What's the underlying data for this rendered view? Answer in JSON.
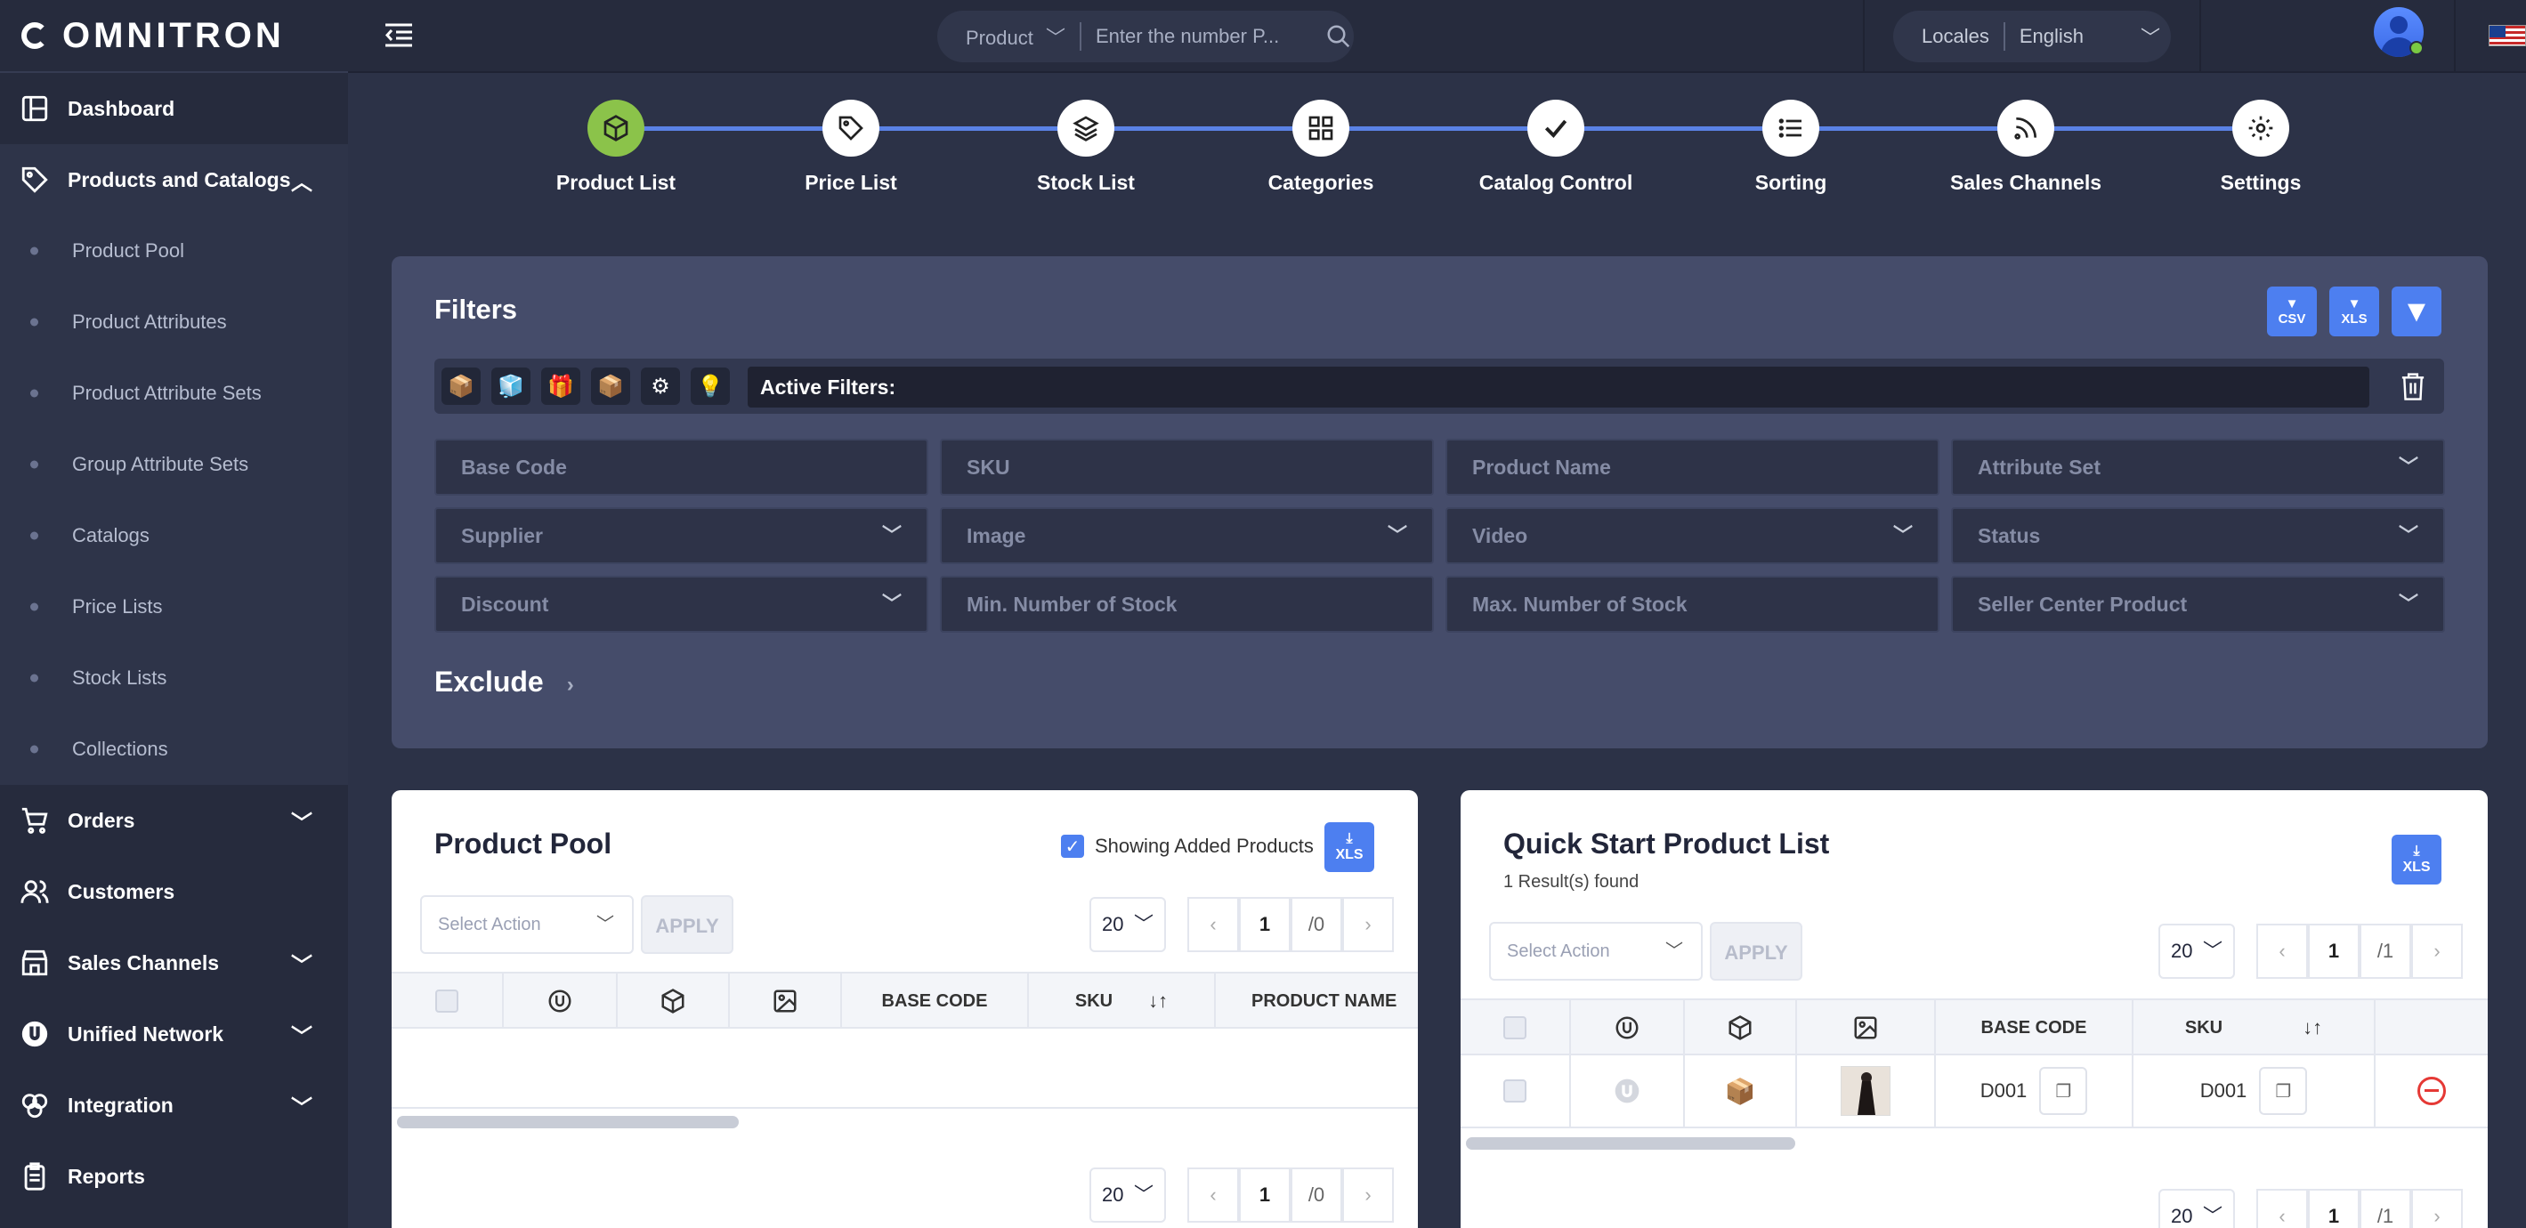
{
  "app": {
    "logo": "OMNITRON"
  },
  "sidebar": {
    "items": [
      {
        "label": "Dashboard"
      },
      {
        "label": "Products and Catalogs"
      },
      {
        "label": "Orders"
      },
      {
        "label": "Customers"
      },
      {
        "label": "Sales Channels"
      },
      {
        "label": "Unified Network"
      },
      {
        "label": "Integration"
      },
      {
        "label": "Reports"
      }
    ],
    "subitems": [
      {
        "label": "Product Pool"
      },
      {
        "label": "Product Attributes"
      },
      {
        "label": "Product Attribute Sets"
      },
      {
        "label": "Group Attribute Sets"
      },
      {
        "label": "Catalogs"
      },
      {
        "label": "Price Lists"
      },
      {
        "label": "Stock Lists"
      },
      {
        "label": "Collections"
      }
    ]
  },
  "topbar": {
    "search_type": "Product",
    "search_placeholder": "Enter the number P...",
    "locales_label": "Locales",
    "locale_value": "English"
  },
  "steps": [
    {
      "label": "Product List"
    },
    {
      "label": "Price List"
    },
    {
      "label": "Stock List"
    },
    {
      "label": "Categories"
    },
    {
      "label": "Catalog Control"
    },
    {
      "label": "Sorting"
    },
    {
      "label": "Sales Channels"
    },
    {
      "label": "Settings"
    }
  ],
  "filters": {
    "title": "Filters",
    "csv_label": "CSV",
    "xls_label": "XLS",
    "active_filters_label": "Active Filters:",
    "fields": [
      {
        "label": "Base Code"
      },
      {
        "label": "SKU"
      },
      {
        "label": "Product Name"
      },
      {
        "label": "Attribute Set"
      },
      {
        "label": "Supplier"
      },
      {
        "label": "Image"
      },
      {
        "label": "Video"
      },
      {
        "label": "Status"
      },
      {
        "label": "Discount"
      },
      {
        "label": "Min. Number of Stock"
      },
      {
        "label": "Max. Number of Stock"
      },
      {
        "label": "Seller Center Product"
      }
    ],
    "exclude_label": "Exclude"
  },
  "product_pool": {
    "title": "Product Pool",
    "showing_added": "Showing Added Products",
    "xls_label": "XLS",
    "select_action": "Select Action",
    "apply": "APPLY",
    "page_size": "20",
    "page": "1",
    "total_pages": "/0",
    "columns": [
      "BASE CODE",
      "SKU",
      "PRODUCT NAME"
    ]
  },
  "quick_start": {
    "title": "Quick Start Product List",
    "results": "1 Result(s) found",
    "xls_label": "XLS",
    "select_action": "Select Action",
    "apply": "APPLY",
    "page_size": "20",
    "page": "1",
    "total_pages": "/1",
    "columns": [
      "BASE CODE",
      "SKU"
    ],
    "rows": [
      {
        "base_code": "D001",
        "sku": "D001"
      }
    ]
  }
}
